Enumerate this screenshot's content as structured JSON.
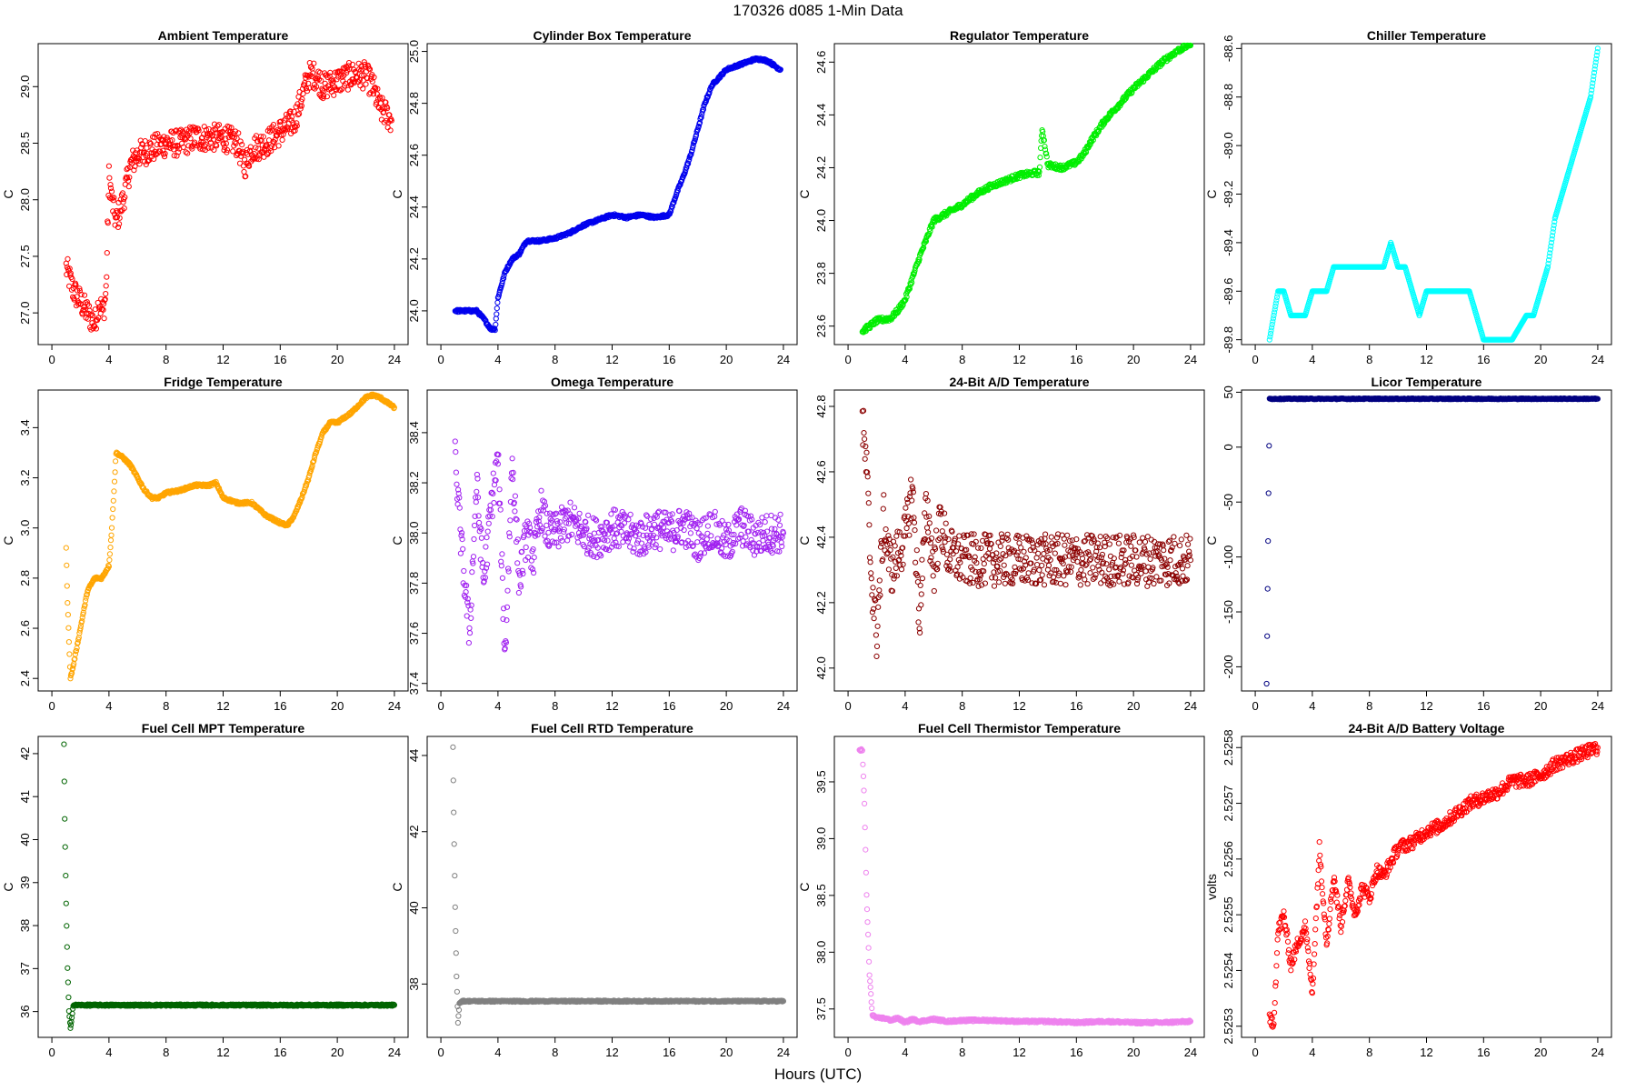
{
  "figure": {
    "title": "170326   d085   1-Min Data",
    "xlabel": "Hours (UTC)"
  },
  "chart_data": [
    {
      "type": "scatter",
      "title": "Ambient Temperature",
      "ylabel": "C",
      "color": "#ff0000",
      "xlim": [
        0,
        24
      ],
      "ylim": [
        26.72,
        29.38
      ],
      "xticks": [
        0,
        4,
        8,
        12,
        16,
        20,
        24
      ],
      "yticks": [
        27.0,
        27.5,
        28.0,
        28.5,
        29.0
      ],
      "ytick_labels": [
        "27.0",
        "27.5",
        "28.0",
        "28.5",
        "29.0"
      ],
      "x": [
        1,
        1.5,
        2,
        2.5,
        3,
        3.3,
        3.6,
        3.8,
        4,
        4.2,
        4.5,
        5,
        5.5,
        6,
        7,
        8,
        9,
        10,
        11,
        12,
        13,
        13.5,
        14,
        15,
        16,
        17,
        17.5,
        18,
        18.5,
        19,
        20,
        21,
        22,
        22.5,
        23,
        23.5,
        23.8
      ],
      "y": [
        27.4,
        27.2,
        27.1,
        27.0,
        26.9,
        27.1,
        27.0,
        27.2,
        28.2,
        28.0,
        27.8,
        28.0,
        28.3,
        28.4,
        28.45,
        28.5,
        28.5,
        28.55,
        28.55,
        28.55,
        28.5,
        28.3,
        28.45,
        28.5,
        28.6,
        28.7,
        28.9,
        29.1,
        29.1,
        29.0,
        29.05,
        29.1,
        29.1,
        29.0,
        28.8,
        28.75,
        28.7
      ],
      "spread": 0.12
    },
    {
      "type": "scatter",
      "title": "Cylinder Box Temperature",
      "ylabel": "C",
      "color": "#0000ee",
      "xlim": [
        0,
        24
      ],
      "ylim": [
        23.87,
        25.03
      ],
      "xticks": [
        0,
        4,
        8,
        12,
        16,
        20,
        24
      ],
      "yticks": [
        24.0,
        24.2,
        24.4,
        24.6,
        24.8,
        25.0
      ],
      "ytick_labels": [
        "24.0",
        "24.2",
        "24.4",
        "24.6",
        "24.8",
        "25.0"
      ],
      "x": [
        1,
        1.5,
        2,
        2.5,
        3,
        3.5,
        3.8,
        4,
        4.5,
        5,
        5.5,
        6,
        7,
        8,
        9,
        10,
        11,
        12,
        13,
        14,
        15,
        16,
        16.5,
        17,
        17.5,
        18,
        18.5,
        19,
        20,
        21,
        22,
        22.5,
        23,
        23.5,
        23.8
      ],
      "y": [
        24.0,
        24.0,
        24.0,
        24.0,
        23.97,
        23.93,
        23.93,
        24.05,
        24.15,
        24.2,
        24.22,
        24.27,
        24.27,
        24.28,
        24.3,
        24.33,
        24.35,
        24.37,
        24.36,
        24.37,
        24.36,
        24.37,
        24.45,
        24.52,
        24.6,
        24.7,
        24.8,
        24.87,
        24.93,
        24.95,
        24.97,
        24.97,
        24.96,
        24.94,
        24.93
      ],
      "spread": 0.005
    },
    {
      "type": "scatter",
      "title": "Regulator Temperature",
      "ylabel": "C",
      "color": "#00ee00",
      "xlim": [
        0,
        24
      ],
      "ylim": [
        23.53,
        24.67
      ],
      "xticks": [
        0,
        4,
        8,
        12,
        16,
        20,
        24
      ],
      "yticks": [
        23.6,
        23.8,
        24.0,
        24.2,
        24.4,
        24.6
      ],
      "ytick_labels": [
        "23.6",
        "23.8",
        "24.0",
        "24.2",
        "24.4",
        "24.6"
      ],
      "x": [
        1,
        1.5,
        2,
        3,
        3.5,
        4,
        4.5,
        5,
        5.5,
        6,
        7,
        8,
        9,
        10,
        11,
        12,
        13,
        13.4,
        13.6,
        14,
        15,
        16,
        16.5,
        17,
        18,
        19,
        20,
        21,
        22,
        23,
        24
      ],
      "y": [
        23.58,
        23.6,
        23.62,
        23.63,
        23.66,
        23.7,
        23.78,
        23.86,
        23.93,
        24.0,
        24.03,
        24.06,
        24.1,
        24.13,
        24.15,
        24.17,
        24.18,
        24.18,
        24.35,
        24.21,
        24.2,
        24.22,
        24.25,
        24.3,
        24.38,
        24.44,
        24.5,
        24.55,
        24.6,
        24.64,
        24.67
      ],
      "spread": 0.01
    },
    {
      "type": "scatter",
      "title": "Chiller Temperature",
      "ylabel": "C",
      "color": "#00ffff",
      "xlim": [
        0,
        24
      ],
      "ylim": [
        -89.82,
        -88.58
      ],
      "xticks": [
        0,
        4,
        8,
        12,
        16,
        20,
        24
      ],
      "yticks": [
        -89.8,
        -89.6,
        -89.4,
        -89.2,
        -89.0,
        -88.8,
        -88.6
      ],
      "ytick_labels": [
        "-89.8",
        "-89.6",
        "-89.4",
        "-89.2",
        "-89.0",
        "-88.8",
        "-88.6"
      ],
      "x": [
        1,
        1.3,
        1.6,
        2,
        2.5,
        3,
        3.5,
        4,
        4.5,
        5,
        5.5,
        6,
        7,
        8,
        9,
        9.5,
        10,
        10.5,
        11,
        11.5,
        12,
        13,
        14,
        15,
        15.5,
        16,
        17,
        18,
        19,
        19.5,
        20,
        20.5,
        21,
        21.5,
        22,
        22.5,
        23,
        23.5,
        24
      ],
      "y": [
        -89.8,
        -89.7,
        -89.6,
        -89.6,
        -89.7,
        -89.7,
        -89.7,
        -89.6,
        -89.6,
        -89.6,
        -89.5,
        -89.5,
        -89.5,
        -89.5,
        -89.5,
        -89.4,
        -89.5,
        -89.5,
        -89.6,
        -89.7,
        -89.6,
        -89.6,
        -89.6,
        -89.6,
        -89.7,
        -89.8,
        -89.8,
        -89.8,
        -89.7,
        -89.7,
        -89.6,
        -89.5,
        -89.3,
        -89.2,
        -89.1,
        -89.0,
        -88.9,
        -88.8,
        -88.6
      ],
      "spread": 0.0
    },
    {
      "type": "scatter",
      "title": "Fridge Temperature",
      "ylabel": "C",
      "color": "#ffa500",
      "xlim": [
        0,
        24
      ],
      "ylim": [
        2.35,
        3.55
      ],
      "xticks": [
        0,
        4,
        8,
        12,
        16,
        20,
        24
      ],
      "yticks": [
        2.4,
        2.6,
        2.8,
        3.0,
        3.2,
        3.4
      ],
      "ytick_labels": [
        "2.4",
        "2.6",
        "2.8",
        "3.0",
        "3.2",
        "3.4"
      ],
      "x": [
        1,
        1.1,
        1.3,
        1.5,
        2,
        2.5,
        3,
        3.5,
        4,
        4.2,
        4.5,
        5,
        5.5,
        6,
        6.5,
        7,
        7.5,
        8,
        9,
        10,
        11,
        11.5,
        12,
        13,
        14,
        15,
        16,
        16.5,
        17,
        17.5,
        18,
        18.5,
        19,
        19.5,
        20,
        21,
        22,
        22.5,
        23,
        23.5,
        24
      ],
      "y": [
        2.92,
        2.7,
        2.4,
        2.45,
        2.6,
        2.75,
        2.8,
        2.8,
        2.85,
        3.0,
        3.3,
        3.28,
        3.25,
        3.2,
        3.15,
        3.12,
        3.12,
        3.14,
        3.15,
        3.17,
        3.17,
        3.18,
        3.12,
        3.1,
        3.1,
        3.05,
        3.02,
        3.01,
        3.05,
        3.12,
        3.2,
        3.3,
        3.38,
        3.42,
        3.42,
        3.46,
        3.52,
        3.53,
        3.52,
        3.5,
        3.48
      ],
      "spread": 0.005
    },
    {
      "type": "scatter",
      "title": "Omega Temperature",
      "ylabel": "C",
      "color": "#a020f0",
      "xlim": [
        0,
        24
      ],
      "ylim": [
        37.37,
        38.57
      ],
      "xticks": [
        0,
        4,
        8,
        12,
        16,
        20,
        24
      ],
      "yticks": [
        37.4,
        37.6,
        37.8,
        38.0,
        38.2,
        38.4
      ],
      "ytick_labels": [
        "37.4",
        "37.6",
        "37.8",
        "38.0",
        "38.2",
        "38.4"
      ],
      "x": [
        1,
        1.5,
        2,
        2.5,
        3,
        3.5,
        4,
        4.5,
        5,
        5.5,
        6,
        6.5,
        7,
        7.5,
        8,
        9,
        10,
        11,
        12,
        13,
        14,
        15,
        16,
        17,
        18,
        19,
        20,
        21,
        22,
        23,
        24
      ],
      "y": [
        38.3,
        37.9,
        37.6,
        38.2,
        37.8,
        38.1,
        38.3,
        37.5,
        38.3,
        37.8,
        38.0,
        37.9,
        38.1,
        38.0,
        38.0,
        38.05,
        38.0,
        37.98,
        38.02,
        38.0,
        37.98,
        38.02,
        38.0,
        38.03,
        37.97,
        38.02,
        37.95,
        38.03,
        37.98,
        38.0,
        38.0
      ],
      "spread": 0.08
    },
    {
      "type": "scatter",
      "title": "24-Bit A/D Temperature",
      "ylabel": "C",
      "color": "#8b0000",
      "xlim": [
        0,
        24
      ],
      "ylim": [
        41.93,
        42.85
      ],
      "xticks": [
        0,
        4,
        8,
        12,
        16,
        20,
        24
      ],
      "yticks": [
        42.0,
        42.2,
        42.4,
        42.6,
        42.8
      ],
      "ytick_labels": [
        "42.0",
        "42.2",
        "42.4",
        "42.6",
        "42.8"
      ],
      "x": [
        1,
        1.3,
        1.6,
        2,
        2.5,
        3,
        3.5,
        4,
        4.5,
        5,
        5.5,
        6,
        6.5,
        7,
        8,
        9,
        10,
        11,
        12,
        13,
        14,
        15,
        16,
        17,
        18,
        19,
        20,
        21,
        22,
        23,
        24
      ],
      "y": [
        42.75,
        42.6,
        42.3,
        42.1,
        42.45,
        42.3,
        42.35,
        42.4,
        42.55,
        42.15,
        42.5,
        42.3,
        42.45,
        42.35,
        42.33,
        42.33,
        42.33,
        42.33,
        42.33,
        42.33,
        42.33,
        42.33,
        42.33,
        42.33,
        42.33,
        42.33,
        42.33,
        42.33,
        42.33,
        42.33,
        42.33
      ],
      "spread": 0.08
    },
    {
      "type": "scatter",
      "title": "Licor Temperature",
      "ylabel": "C",
      "color": "#000080",
      "xlim": [
        0,
        24
      ],
      "ylim": [
        -222,
        52
      ],
      "xticks": [
        0,
        4,
        8,
        12,
        16,
        20,
        24
      ],
      "yticks": [
        -200,
        -150,
        -100,
        -50,
        0,
        50
      ],
      "ytick_labels": [
        "-200",
        "-150",
        "-100",
        "-50",
        "0",
        "50"
      ],
      "x": [
        0.8,
        1,
        2,
        4,
        6,
        8,
        10,
        12,
        14,
        16,
        18,
        20,
        22,
        24
      ],
      "y": [
        -215,
        44,
        44,
        44,
        44,
        44,
        44,
        44,
        44,
        44,
        44,
        44,
        44,
        44
      ],
      "spread": 0.5
    },
    {
      "type": "scatter",
      "title": "Fuel Cell MPT Temperature",
      "ylabel": "C",
      "color": "#006400",
      "xlim": [
        0,
        24
      ],
      "ylim": [
        35.4,
        42.4
      ],
      "xticks": [
        0,
        4,
        8,
        12,
        16,
        20,
        24
      ],
      "yticks": [
        36,
        37,
        38,
        39,
        40,
        41,
        42
      ],
      "ytick_labels": [
        "36",
        "37",
        "38",
        "39",
        "40",
        "41",
        "42"
      ],
      "x": [
        0.85,
        0.9,
        1.0,
        1.1,
        1.2,
        1.3,
        1.5,
        2,
        4,
        8,
        12,
        16,
        20,
        24
      ],
      "y": [
        42.2,
        40.5,
        38.5,
        37.0,
        36.0,
        35.6,
        36.15,
        36.15,
        36.15,
        36.15,
        36.15,
        36.15,
        36.15,
        36.15
      ],
      "spread": 0.02
    },
    {
      "type": "scatter",
      "title": "Fuel Cell RTD Temperature",
      "ylabel": "C",
      "color": "#808080",
      "xlim": [
        0,
        24
      ],
      "ylim": [
        36.6,
        44.5
      ],
      "xticks": [
        0,
        4,
        8,
        12,
        16,
        20,
        24
      ],
      "yticks": [
        38,
        40,
        42,
        44
      ],
      "ytick_labels": [
        "38",
        "40",
        "42",
        "44"
      ],
      "x": [
        0.85,
        0.9,
        1.0,
        1.1,
        1.2,
        1.3,
        1.5,
        2,
        4,
        8,
        12,
        16,
        20,
        24
      ],
      "y": [
        44.2,
        42.5,
        40.0,
        38.2,
        37.0,
        37.5,
        37.55,
        37.55,
        37.55,
        37.55,
        37.55,
        37.55,
        37.55,
        37.55
      ],
      "spread": 0.02
    },
    {
      "type": "scatter",
      "title": "Fuel Cell Thermistor Temperature",
      "ylabel": "C",
      "color": "#ee82ee",
      "xlim": [
        0,
        24
      ],
      "ylim": [
        37.25,
        39.9
      ],
      "xticks": [
        0,
        4,
        8,
        12,
        16,
        20,
        24
      ],
      "yticks": [
        37.5,
        38.0,
        38.5,
        39.0,
        39.5
      ],
      "ytick_labels": [
        "37.5",
        "38.0",
        "38.5",
        "39.0",
        "39.5"
      ],
      "x": [
        0.8,
        1.0,
        1.15,
        1.3,
        1.5,
        1.7,
        2,
        2.5,
        3,
        3.5,
        4,
        4.5,
        5,
        6,
        7,
        8,
        10,
        12,
        14,
        16,
        18,
        20,
        22,
        24
      ],
      "y": [
        39.78,
        39.78,
        39.3,
        38.5,
        37.8,
        37.45,
        37.42,
        37.42,
        37.4,
        37.42,
        37.38,
        37.41,
        37.39,
        37.41,
        37.39,
        37.4,
        37.4,
        37.39,
        37.39,
        37.38,
        37.39,
        37.38,
        37.38,
        37.39
      ],
      "spread": 0.01
    },
    {
      "type": "scatter",
      "title": "24-Bit A/D Battery Voltage",
      "ylabel": "volts",
      "color": "#ff0000",
      "xlim": [
        0,
        24
      ],
      "ylim": [
        2.52528,
        2.52582
      ],
      "xticks": [
        0,
        4,
        8,
        12,
        16,
        20,
        24
      ],
      "yticks": [
        2.5253,
        2.5254,
        2.5255,
        2.5256,
        2.5257,
        2.5258
      ],
      "ytick_labels": [
        "2.5253",
        "2.5254",
        "2.5255",
        "2.5256",
        "2.5257",
        "2.5258"
      ],
      "x": [
        1,
        1.3,
        1.6,
        2,
        2.5,
        3,
        3.5,
        4,
        4.5,
        5,
        5.5,
        6,
        6.5,
        7,
        7.5,
        8,
        8.5,
        9,
        10,
        11,
        12,
        13,
        14,
        15,
        16,
        17,
        18,
        19,
        20,
        21,
        22,
        23,
        24
      ],
      "y": [
        2.52531,
        2.52531,
        2.52547,
        2.5255,
        2.52541,
        2.52545,
        2.52548,
        2.52536,
        2.52562,
        2.52545,
        2.52557,
        2.52548,
        2.52556,
        2.5255,
        2.52555,
        2.52553,
        2.52558,
        2.52557,
        2.52562,
        2.52563,
        2.52565,
        2.52566,
        2.52568,
        2.5257,
        2.52571,
        2.52572,
        2.52574,
        2.52574,
        2.52575,
        2.52577,
        2.52578,
        2.52579,
        2.5258
      ],
      "spread": 1.2e-05
    }
  ]
}
